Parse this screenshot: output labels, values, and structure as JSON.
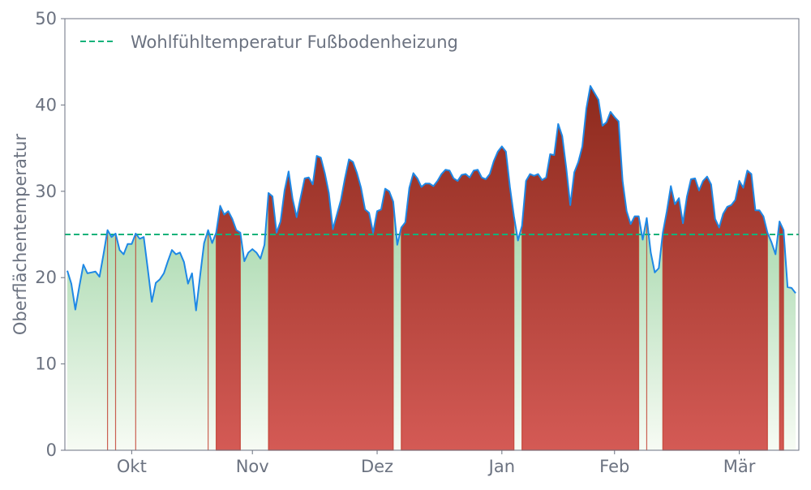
{
  "chart_data": {
    "type": "area",
    "title": "",
    "xlabel": "",
    "ylabel": "Oberflächentemperatur",
    "ylim": [
      0,
      50
    ],
    "xlim": [
      -0.6,
      181.8
    ],
    "yticks": [
      0,
      10,
      20,
      30,
      40,
      50
    ],
    "xticks": [
      {
        "label": "Okt",
        "x": 16
      },
      {
        "label": "Nov",
        "x": 46
      },
      {
        "label": "Dez",
        "x": 77
      },
      {
        "label": "Jan",
        "x": 108
      },
      {
        "label": "Feb",
        "x": 136
      },
      {
        "label": "Mär",
        "x": 167
      }
    ],
    "threshold": {
      "label": "Wohlfühltemperatur Fußbodenheizung",
      "value": 25
    },
    "legend_position": "top-left",
    "grid": false,
    "series": [
      {
        "name": "Oberflächentemperatur",
        "values": [
          20.8,
          19.3,
          16.3,
          19.0,
          21.5,
          20.5,
          20.6,
          20.7,
          20.1,
          22.7,
          25.5,
          24.7,
          25.1,
          23.2,
          22.7,
          23.9,
          23.9,
          25.1,
          24.5,
          24.7,
          21.0,
          17.2,
          19.4,
          19.8,
          20.5,
          21.9,
          23.2,
          22.7,
          22.9,
          21.8,
          19.3,
          20.5,
          16.2,
          20.2,
          24.0,
          25.5,
          24.0,
          25.2,
          28.3,
          27.3,
          27.7,
          26.8,
          25.5,
          25.2,
          21.9,
          22.9,
          23.3,
          22.9,
          22.2,
          23.8,
          29.8,
          29.4,
          25.2,
          26.5,
          30.1,
          32.3,
          29.1,
          27.0,
          29.3,
          31.5,
          31.6,
          30.8,
          34.1,
          33.9,
          32.1,
          29.8,
          25.6,
          27.3,
          29.0,
          31.5,
          33.7,
          33.4,
          32.1,
          30.4,
          27.9,
          27.5,
          25.2,
          27.7,
          27.9,
          30.3,
          30.0,
          28.8,
          23.8,
          25.8,
          26.4,
          30.4,
          32.1,
          31.5,
          30.5,
          30.9,
          30.9,
          30.6,
          31.2,
          32.0,
          32.5,
          32.4,
          31.5,
          31.2,
          31.9,
          32.0,
          31.6,
          32.4,
          32.5,
          31.6,
          31.4,
          32.0,
          33.5,
          34.6,
          35.2,
          34.6,
          30.5,
          27.1,
          24.3,
          26.0,
          31.2,
          32.0,
          31.8,
          32.0,
          31.3,
          31.6,
          34.3,
          34.2,
          37.8,
          36.4,
          32.7,
          28.4,
          32.2,
          33.4,
          35.2,
          39.6,
          42.2,
          41.4,
          40.6,
          37.6,
          38.0,
          39.2,
          38.6,
          38.1,
          31.2,
          27.7,
          26.2,
          27.1,
          27.1,
          24.4,
          26.9,
          22.9,
          20.6,
          21.1,
          25.2,
          27.7,
          30.6,
          28.5,
          29.2,
          26.3,
          29.4,
          31.4,
          31.5,
          30.1,
          31.2,
          31.7,
          30.8,
          26.8,
          25.8,
          27.4,
          28.2,
          28.4,
          29.0,
          31.2,
          30.4,
          32.4,
          32.0,
          27.8,
          27.8,
          27.1,
          25.2,
          24.1,
          22.7,
          26.5,
          25.5,
          18.9,
          18.8,
          18.2
        ]
      }
    ],
    "colors": {
      "line": "#1e88e5",
      "threshold": "#10b27a",
      "above_top": "#8d2a1d",
      "above_bottom": "#d45a55",
      "below_top": "#7cc687",
      "below_bottom": "#f7fbf4",
      "axis": "#6b7280"
    }
  }
}
